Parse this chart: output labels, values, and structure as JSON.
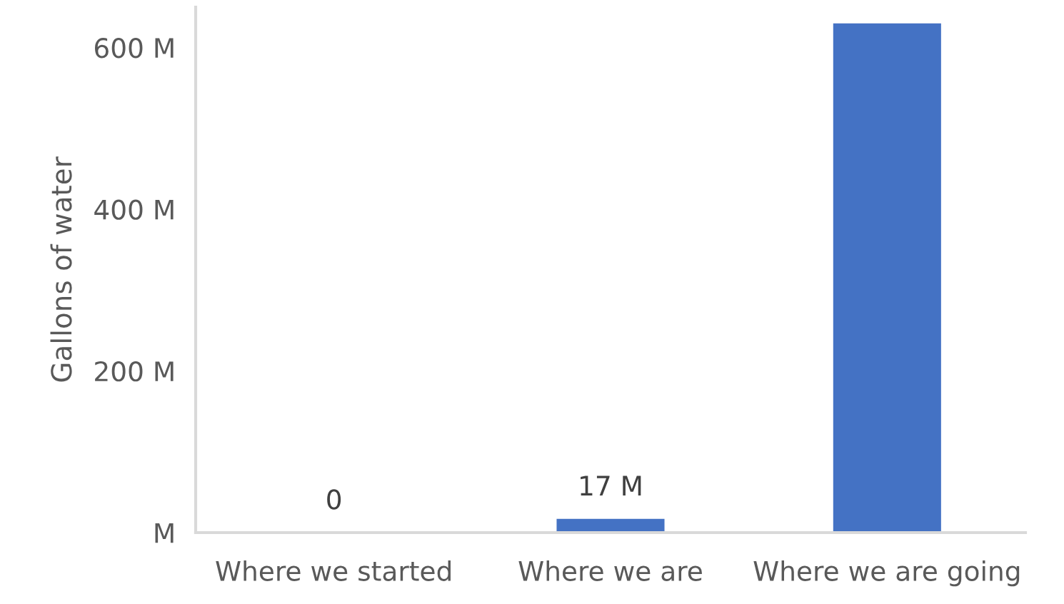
{
  "chart_data": {
    "type": "bar",
    "ylabel": "Gallons of water",
    "categories": [
      "Where we started",
      "Where we are",
      "Where we are going"
    ],
    "values": [
      0,
      17,
      630
    ],
    "value_labels": [
      "0",
      "17 M",
      null
    ],
    "color": "#4472c4",
    "ylim": [
      0,
      650
    ],
    "yticks": [
      {
        "value": 0,
        "label": "M"
      },
      {
        "value": 200,
        "label": "200 M"
      },
      {
        "value": 400,
        "label": "400 M"
      },
      {
        "value": 600,
        "label": "600 M"
      }
    ],
    "grid": false,
    "legend": false
  }
}
